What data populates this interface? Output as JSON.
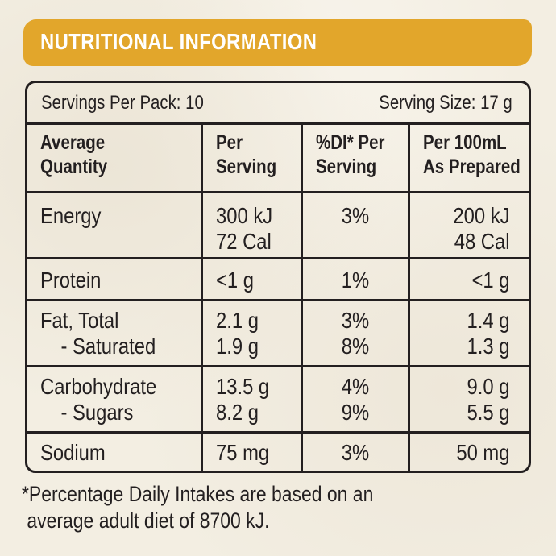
{
  "banner": {
    "title": "NUTRITIONAL INFORMATION"
  },
  "servings": {
    "per_pack": "Servings Per Pack: 10",
    "size": "Serving Size: 17 g"
  },
  "headers": {
    "col1_line1": "Average",
    "col1_line2": "Quantity",
    "col2_line1": "Per",
    "col2_line2": "Serving",
    "col3_line1": "%DI* Per",
    "col3_line2": "Serving",
    "col4_line1": "Per 100mL",
    "col4_line2": "As Prepared"
  },
  "rows": [
    {
      "label": "Energy",
      "sub_label": "",
      "per_serving": "300 kJ",
      "per_serving_2": "72 Cal",
      "di": "3%",
      "di_2": "",
      "per_100": "200 kJ",
      "per_100_2": "48 Cal"
    },
    {
      "label": "Protein",
      "per_serving": "<1 g",
      "di": "1%",
      "per_100": "<1 g"
    },
    {
      "label": "Fat, Total",
      "sub_label": "- Saturated",
      "per_serving": "2.1 g",
      "per_serving_2": "1.9 g",
      "di": "3%",
      "di_2": "8%",
      "per_100": "1.4 g",
      "per_100_2": "1.3 g"
    },
    {
      "label": "Carbohydrate",
      "sub_label": "- Sugars",
      "per_serving": "13.5 g",
      "per_serving_2": "8.2 g",
      "di": "4%",
      "di_2": "9%",
      "per_100": "9.0 g",
      "per_100_2": "5.5 g"
    },
    {
      "label": "Sodium",
      "per_serving": "75 mg",
      "di": "3%",
      "per_100": "50 mg"
    }
  ],
  "footnote": {
    "line1": "*Percentage Daily Intakes are based on an",
    "line2": " average adult diet of 8700 kJ."
  },
  "colors": {
    "banner": "#e2a62b",
    "background": "#f3eee2",
    "ink": "#231f20"
  }
}
